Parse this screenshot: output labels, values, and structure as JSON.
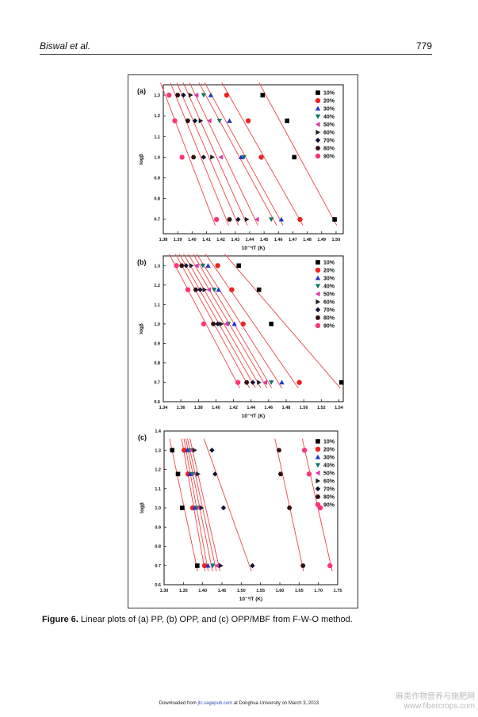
{
  "header": {
    "authors": "Biswal et al.",
    "page": "779"
  },
  "caption": {
    "label": "Figure 6.",
    "text": " Linear plots of (a) PP, (b) OPP, and (c) OPP/MBF from F-W-O method."
  },
  "footer": {
    "prefix": "Downloaded from ",
    "link": "jtc.sagepub.com",
    "suffix": " at Donghua University on March 3, 2013"
  },
  "watermark": {
    "line1": "麻类作物营养与施肥网",
    "line2": "www.fibercrops.com"
  },
  "legend_series": [
    "10%",
    "20%",
    "30%",
    "40%",
    "50%",
    "60%",
    "70%",
    "80%",
    "90%"
  ],
  "series_colors": [
    "#000000",
    "#ee2222",
    "#2233cc",
    "#117766",
    "#dd33aa",
    "#222222",
    "#111133",
    "#331111",
    "#ff3377"
  ],
  "series_markers": [
    "square",
    "circle",
    "triangle-up",
    "triangle-down",
    "triangle-left",
    "triangle-right",
    "diamond",
    "hexagon",
    "circle"
  ],
  "fit_line_color": "#ee4444",
  "chart_data": [
    {
      "panel": "(a)",
      "type": "scatter",
      "xlabel": "10⁻³/T (K)",
      "ylabel": "logβ",
      "xlim": [
        1.38,
        1.505
      ],
      "ylim": [
        0.63,
        1.35
      ],
      "xticks": [
        "1.38",
        "1.39",
        "1.40",
        "1.41",
        "1.42",
        "1.43",
        "1.44",
        "1.45",
        "1.46",
        "1.47",
        "1.48",
        "1.49",
        "1.50"
      ],
      "yticks": [
        "0.7",
        "0.8",
        "0.9",
        "1.0",
        "1.1",
        "1.2",
        "1.3"
      ],
      "y": [
        1.3,
        1.176,
        1.0,
        0.699
      ],
      "series": [
        {
          "name": "10%",
          "x": [
            1.449,
            1.466,
            1.471,
            1.499
          ]
        },
        {
          "name": "20%",
          "x": [
            1.424,
            1.439,
            1.448,
            1.475
          ]
        },
        {
          "name": "30%",
          "x": [
            1.413,
            1.426,
            1.434,
            1.462
          ]
        },
        {
          "name": "40%",
          "x": [
            1.408,
            1.419,
            1.436,
            1.455
          ]
        },
        {
          "name": "50%",
          "x": [
            1.403,
            1.412,
            1.42,
            1.445
          ]
        },
        {
          "name": "60%",
          "x": [
            1.399,
            1.406,
            1.414,
            1.438
          ]
        },
        {
          "name": "70%",
          "x": [
            1.394,
            1.402,
            1.408,
            1.432
          ]
        },
        {
          "name": "80%",
          "x": [
            1.39,
            1.397,
            1.401,
            1.426
          ]
        },
        {
          "name": "90%",
          "x": [
            1.384,
            1.388,
            1.393,
            1.417
          ]
        }
      ]
    },
    {
      "panel": "(b)",
      "type": "scatter",
      "xlabel": "10⁻³/T (K)",
      "ylabel": "logβ",
      "xlim": [
        1.34,
        1.545
      ],
      "ylim": [
        0.6,
        1.35
      ],
      "xticks": [
        "1.34",
        "1.36",
        "1.38",
        "1.40",
        "1.42",
        "1.44",
        "1.46",
        "1.48",
        "1.50",
        "1.52",
        "1.54"
      ],
      "yticks": [
        "0.6",
        "0.7",
        "0.8",
        "0.9",
        "1.0",
        "1.1",
        "1.2",
        "1.3"
      ],
      "y": [
        1.3,
        1.176,
        1.0,
        0.699
      ],
      "series": [
        {
          "name": "10%",
          "x": [
            1.426,
            1.449,
            1.463,
            1.543
          ]
        },
        {
          "name": "20%",
          "x": [
            1.402,
            1.418,
            1.431,
            1.495
          ]
        },
        {
          "name": "30%",
          "x": [
            1.391,
            1.403,
            1.421,
            1.475
          ]
        },
        {
          "name": "40%",
          "x": [
            1.385,
            1.398,
            1.414,
            1.463
          ]
        },
        {
          "name": "50%",
          "x": [
            1.378,
            1.392,
            1.412,
            1.456
          ]
        },
        {
          "name": "60%",
          "x": [
            1.372,
            1.387,
            1.406,
            1.449
          ]
        },
        {
          "name": "70%",
          "x": [
            1.366,
            1.382,
            1.402,
            1.442
          ]
        },
        {
          "name": "80%",
          "x": [
            1.361,
            1.377,
            1.397,
            1.435
          ]
        },
        {
          "name": "90%",
          "x": [
            1.355,
            1.368,
            1.386,
            1.425
          ]
        }
      ]
    },
    {
      "panel": "(c)",
      "type": "scatter",
      "xlabel": "10⁻³/T (K)",
      "ylabel": "logβ",
      "xlim": [
        1.3,
        1.75
      ],
      "ylim": [
        0.6,
        1.4
      ],
      "xticks": [
        "1.30",
        "1.35",
        "1.40",
        "1.45",
        "1.50",
        "1.55",
        "1.60",
        "1.65",
        "1.70",
        "1.75"
      ],
      "yticks": [
        "0.6",
        "0.7",
        "0.8",
        "0.9",
        "1.0",
        "1.1",
        "1.2",
        "1.3",
        "1.4"
      ],
      "y": [
        1.3,
        1.176,
        1.0,
        0.699
      ],
      "series": [
        {
          "name": "10%",
          "x": [
            1.321,
            1.336,
            1.347,
            1.386
          ]
        },
        {
          "name": "20%",
          "x": [
            1.352,
            1.362,
            1.374,
            1.405
          ]
        },
        {
          "name": "30%",
          "x": [
            1.36,
            1.367,
            1.38,
            1.414
          ]
        },
        {
          "name": "40%",
          "x": [
            1.366,
            1.374,
            1.386,
            1.426
          ]
        },
        {
          "name": "50%",
          "x": [
            1.371,
            1.382,
            1.39,
            1.437
          ]
        },
        {
          "name": "60%",
          "x": [
            1.379,
            1.388,
            1.397,
            1.447
          ]
        },
        {
          "name": "70%",
          "x": [
            1.424,
            1.432,
            1.454,
            1.529
          ]
        },
        {
          "name": "80%",
          "x": [
            1.598,
            1.602,
            1.625,
            1.66
          ]
        },
        {
          "name": "90%",
          "x": [
            1.664,
            1.676,
            1.705,
            1.73
          ]
        }
      ]
    }
  ]
}
